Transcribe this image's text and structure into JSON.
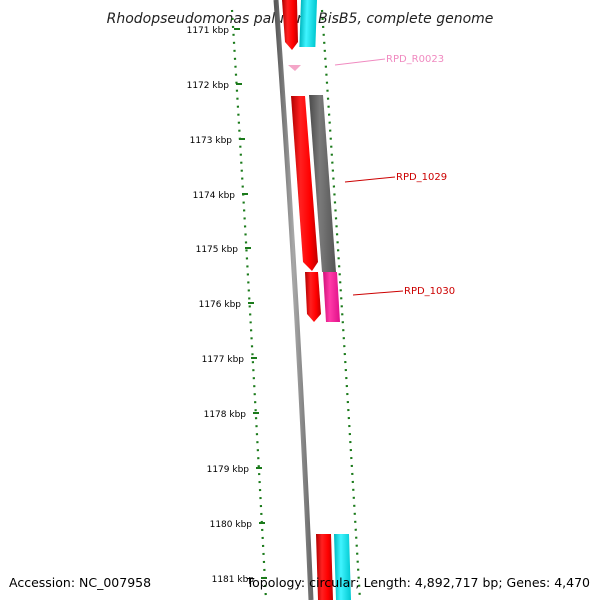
{
  "title": "Rhodopseudomonas palustris BisB5, complete genome",
  "footer": {
    "accession": "Accession: NC_007958",
    "topology": "Topology: circular; Length: 4,892,717 bp; Genes: 4,470"
  },
  "ruler": {
    "unit": "kbp",
    "ticks": [
      {
        "label": "1171 kbp"
      },
      {
        "label": "1172 kbp"
      },
      {
        "label": "1173 kbp"
      },
      {
        "label": "1174 kbp"
      },
      {
        "label": "1175 kbp"
      },
      {
        "label": "1176 kbp"
      },
      {
        "label": "1177 kbp"
      },
      {
        "label": "1178 kbp"
      },
      {
        "label": "1179 kbp"
      },
      {
        "label": "1180 kbp"
      },
      {
        "label": "1181 kbp"
      }
    ]
  },
  "gene_labels": [
    {
      "name": "RPD_R0023",
      "color": "#f08ac0"
    },
    {
      "name": "RPD_1029",
      "color": "#cc0000"
    },
    {
      "name": "RPD_1030",
      "color": "#cc0000"
    }
  ],
  "colors": {
    "backbone": "#808080",
    "forward_gene": "#ff0000",
    "reverse_gene": "#00d8e0",
    "gray_gene": "#6a6a6a",
    "magenta_gene": "#ff1493",
    "rna": "#f4a6c8",
    "ruler": "#1a7a1a"
  }
}
